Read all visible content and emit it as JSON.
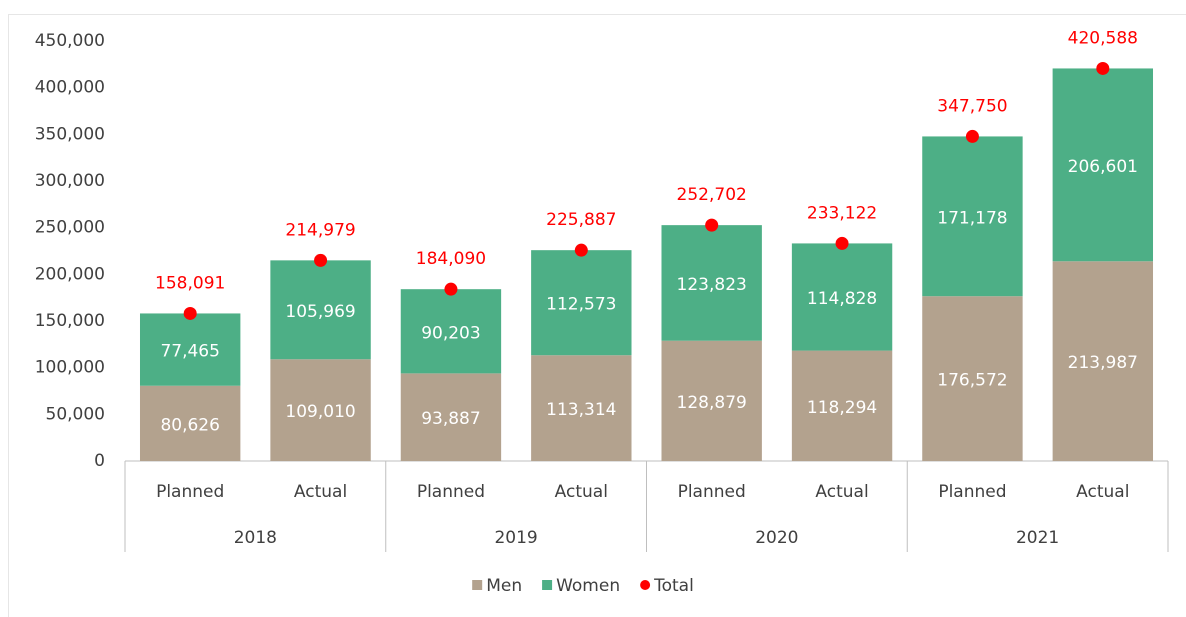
{
  "chart_data": {
    "type": "bar",
    "stacked": true,
    "categories": [
      "Planned",
      "Actual",
      "Planned",
      "Actual",
      "Planned",
      "Actual",
      "Planned",
      "Actual"
    ],
    "category_groups": [
      "2018",
      "2019",
      "2020",
      "2021"
    ],
    "series": [
      {
        "name": "Men",
        "color": "#b3a28e",
        "values": [
          80626,
          109010,
          93887,
          113314,
          128879,
          118294,
          176572,
          213987
        ],
        "value_labels": [
          "80,626",
          "109,010",
          "93,887",
          "113,314",
          "128,879",
          "118,294",
          "176,572",
          "213,987"
        ]
      },
      {
        "name": "Women",
        "color": "#4daf86",
        "values": [
          77465,
          105969,
          90203,
          112573,
          123823,
          114828,
          171178,
          206601
        ],
        "value_labels": [
          "77,465",
          "105,969",
          "90,203",
          "112,573",
          "123,823",
          "114,828",
          "171,178",
          "206,601"
        ]
      },
      {
        "name": "Total",
        "type": "scatter",
        "color": "#ff0000",
        "values": [
          158091,
          214979,
          184090,
          225887,
          252702,
          233122,
          347750,
          420588
        ],
        "value_labels": [
          "158,091",
          "214,979",
          "184,090",
          "225,887",
          "252,702",
          "233,122",
          "347,750",
          "420,588"
        ]
      }
    ],
    "ylim": [
      0,
      450000
    ],
    "yticks": [
      0,
      {
        "value": 50000,
        "label": "50,000"
      },
      {
        "value": 100000,
        "label": "100,000"
      },
      {
        "value": 150000,
        "label": "150,000"
      },
      {
        "value": 200000,
        "label": "200,000"
      },
      {
        "value": 250000,
        "label": "250,000"
      },
      {
        "value": 300000,
        "label": "300,000"
      },
      {
        "value": 350000,
        "label": "350,000"
      },
      {
        "value": 400000,
        "label": "400,000"
      },
      {
        "value": 450000,
        "label": "450,000"
      }
    ],
    "grid": false,
    "legend": "bottom"
  }
}
